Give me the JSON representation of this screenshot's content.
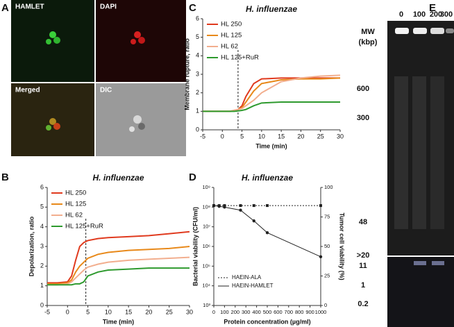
{
  "panel_labels": [
    "A",
    "B",
    "C",
    "D",
    "E"
  ],
  "microscopy": [
    "HAMLET",
    "DAPI",
    "Merged",
    "DIC"
  ],
  "gel": {
    "lanes": [
      "0",
      "100",
      "200",
      "300"
    ],
    "mw_title": "MW",
    "mw_unit": "(kbp)",
    "markers": [
      "600",
      "300",
      "48",
      ">20",
      "11",
      "1",
      "0.2"
    ]
  },
  "chart_data": [
    {
      "type": "line",
      "title": "H. influenzae",
      "x_label": "Time (min)",
      "y_label": "Depolarization, ratio",
      "x": [
        -5,
        -2.5,
        0,
        1,
        2,
        3,
        4,
        5,
        7.5,
        10,
        15,
        20,
        25,
        30
      ],
      "series": [
        {
          "name": "HL 250",
          "color": "#e03a1e",
          "values": [
            1.15,
            1.15,
            1.2,
            1.5,
            2.3,
            3.0,
            3.2,
            3.3,
            3.4,
            3.45,
            3.5,
            3.55,
            3.65,
            3.75
          ]
        },
        {
          "name": "HL 125",
          "color": "#e8891a",
          "values": [
            1.1,
            1.1,
            1.15,
            1.3,
            1.7,
            2.0,
            2.2,
            2.4,
            2.6,
            2.7,
            2.8,
            2.85,
            2.9,
            3.0
          ]
        },
        {
          "name": "HL 62",
          "color": "#f2ae8e",
          "values": [
            1.05,
            1.05,
            1.1,
            1.2,
            1.4,
            1.6,
            1.8,
            1.95,
            2.1,
            2.2,
            2.3,
            2.35,
            2.4,
            2.45
          ]
        },
        {
          "name": "HL 125+RuR",
          "color": "#2e9a2e",
          "values": [
            1.05,
            1.05,
            1.05,
            1.05,
            1.1,
            1.1,
            1.2,
            1.5,
            1.7,
            1.8,
            1.85,
            1.9,
            1.9,
            1.9
          ]
        }
      ],
      "xlim": [
        -5,
        30
      ],
      "ylim": [
        0,
        6
      ],
      "xticks": [
        -5,
        0,
        5,
        10,
        15,
        20,
        25,
        30
      ],
      "yticks": [
        0,
        1,
        2,
        3,
        4,
        5,
        6
      ],
      "vline": 4.5,
      "legend": "upper left"
    },
    {
      "type": "line",
      "title": "H. influenzae",
      "x_label": "Time (min)",
      "y_label": "Membrane rupture, ratio",
      "x": [
        -5,
        -2.5,
        0,
        2,
        3,
        4,
        5,
        6,
        8,
        10,
        15,
        20,
        25,
        30
      ],
      "series": [
        {
          "name": "HL 250",
          "color": "#e03a1e",
          "values": [
            1,
            1,
            1,
            1,
            1.05,
            1.1,
            1.3,
            1.8,
            2.5,
            2.75,
            2.8,
            2.8,
            2.8,
            2.8
          ]
        },
        {
          "name": "HL 125",
          "color": "#e8891a",
          "values": [
            1,
            1,
            1,
            1,
            1.05,
            1.1,
            1.2,
            1.5,
            2.1,
            2.5,
            2.7,
            2.75,
            2.75,
            2.8
          ]
        },
        {
          "name": "HL 62",
          "color": "#f2ae8e",
          "values": [
            1,
            1,
            1,
            1,
            1.05,
            1.1,
            1.15,
            1.3,
            1.6,
            2.0,
            2.6,
            2.8,
            2.9,
            2.95
          ]
        },
        {
          "name": "HL 125+RuR",
          "color": "#2e9a2e",
          "values": [
            1,
            1,
            1,
            1,
            1,
            1.02,
            1.05,
            1.1,
            1.3,
            1.45,
            1.5,
            1.5,
            1.5,
            1.5
          ]
        }
      ],
      "xlim": [
        -5,
        30
      ],
      "ylim": [
        0,
        6
      ],
      "xticks": [
        -5,
        0,
        5,
        10,
        15,
        20,
        25,
        30
      ],
      "yticks": [
        0,
        1,
        2,
        3,
        4,
        5,
        6
      ],
      "vline": 4,
      "legend": "upper left"
    },
    {
      "type": "line",
      "title": "H. influenzae",
      "x_label": "Protein concentration (µg/ml)",
      "y_label": "Bacterial viability (CFU/ml)",
      "y2_label": "Tumor cell viability (%)",
      "x": [
        0,
        50,
        100,
        250,
        375,
        500,
        1000
      ],
      "series": [
        {
          "name": "HAEIN-ALA",
          "color": "#222222",
          "dashed": true,
          "marker": "square",
          "values": [
            120000000,
            120000000,
            120000000,
            120000000,
            120000000,
            120000000,
            120000000
          ]
        },
        {
          "name": "HAEIN-HAMLET",
          "color": "#222222",
          "dashed": false,
          "marker": "circle",
          "values": [
            120000000,
            110000000,
            100000000,
            70000000,
            20000000,
            5000000,
            300000
          ]
        }
      ],
      "xlim": [
        0,
        1000
      ],
      "ylim": [
        1000,
        1000000000
      ],
      "log_y": true,
      "xticks": [
        0,
        100,
        200,
        300,
        400,
        500,
        600,
        700,
        800,
        900,
        1000
      ],
      "yticks": [
        {
          "value": 1000,
          "label": "10³"
        },
        {
          "value": 10000,
          "label": "10⁴"
        },
        {
          "value": 100000,
          "label": "10⁵"
        },
        {
          "value": 1000000,
          "label": "10⁶"
        },
        {
          "value": 10000000,
          "label": "10⁷"
        },
        {
          "value": 100000000,
          "label": "10⁸"
        },
        {
          "value": 1000000000,
          "label": "10⁹"
        }
      ],
      "y2lim": [
        0,
        100
      ],
      "y2ticks": [
        0,
        25,
        50,
        75,
        100
      ],
      "legend": "lower left"
    }
  ]
}
